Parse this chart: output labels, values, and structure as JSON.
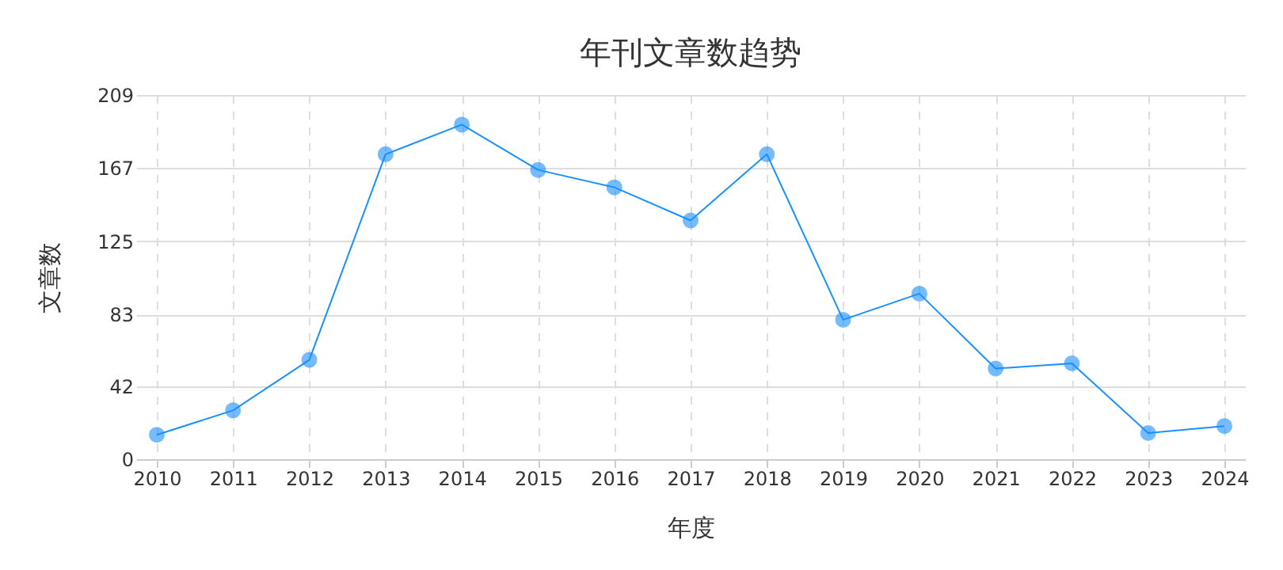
{
  "chart_data": {
    "type": "line",
    "title": "年刊文章数趋势",
    "xlabel": "年度",
    "ylabel": "文章数",
    "categories": [
      "2010",
      "2011",
      "2012",
      "2013",
      "2014",
      "2015",
      "2016",
      "2017",
      "2018",
      "2019",
      "2020",
      "2021",
      "2022",
      "2023",
      "2024"
    ],
    "series": [
      {
        "color": "#1890ff",
        "values": [
          14,
          28,
          57,
          175,
          192,
          166,
          156,
          137,
          175,
          80,
          95,
          52,
          55,
          15,
          19
        ]
      }
    ],
    "ylim": [
      0,
      209
    ],
    "yticks": [
      0,
      42,
      83,
      125,
      167,
      209
    ],
    "grid": true,
    "marker": "circle",
    "line_style": "solid"
  }
}
